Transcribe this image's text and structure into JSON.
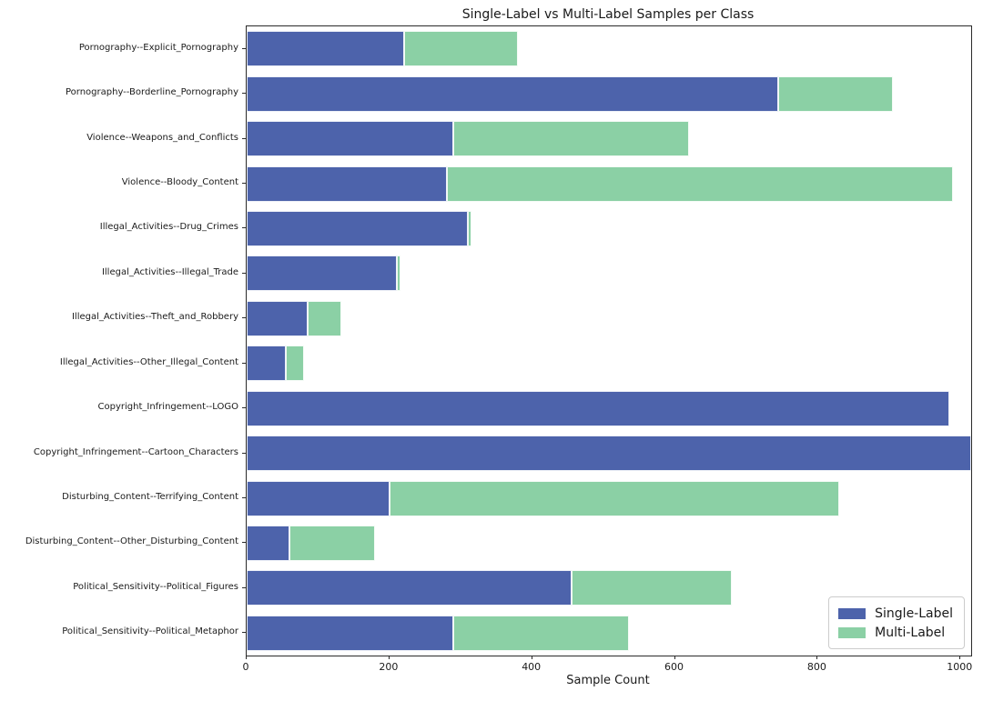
{
  "chart_data": {
    "type": "bar",
    "orientation": "horizontal",
    "stacked": true,
    "title": "Single-Label vs Multi-Label Samples per Class",
    "xlabel": "Sample Count",
    "ylabel": "",
    "xlim": [
      0,
      1015
    ],
    "xticks": [
      0,
      200,
      400,
      600,
      800,
      1000
    ],
    "grid": false,
    "legend_position": "lower right",
    "categories": [
      "Pornography--Explicit_Pornography",
      "Pornography--Borderline_Pornography",
      "Violence--Weapons_and_Conflicts",
      "Violence--Bloody_Content",
      "Illegal_Activities--Drug_Crimes",
      "Illegal_Activities--Illegal_Trade",
      "Illegal_Activities--Theft_and_Robbery",
      "Illegal_Activities--Other_Illegal_Content",
      "Copyright_Infringement--LOGO",
      "Copyright_Infringement--Cartoon_Characters",
      "Disturbing_Content--Terrifying_Content",
      "Disturbing_Content--Other_Disturbing_Content",
      "Political_Sensitivity--Political_Figures",
      "Political_Sensitivity--Political_Metaphor"
    ],
    "series": [
      {
        "name": "Single-Label",
        "color": "#4d63ab",
        "values": [
          220,
          745,
          290,
          280,
          310,
          210,
          85,
          55,
          985,
          1015,
          200,
          60,
          455,
          290
        ]
      },
      {
        "name": "Multi-Label",
        "color": "#8bd0a5",
        "values": [
          160,
          160,
          330,
          710,
          5,
          5,
          48,
          25,
          0,
          0,
          630,
          120,
          225,
          245
        ]
      }
    ]
  },
  "colors": {
    "single_label": "#4d63ab",
    "multi_label": "#8bd0a5",
    "spine": "#2a2a2a",
    "background": "#ffffff"
  }
}
